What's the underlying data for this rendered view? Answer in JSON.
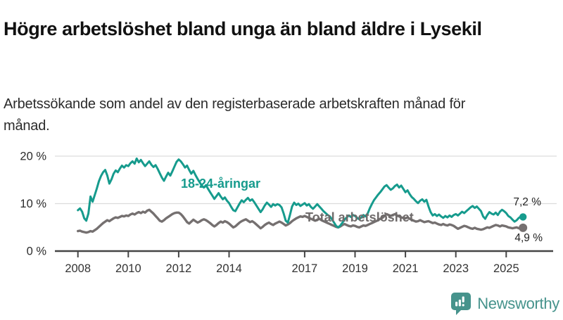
{
  "header": {
    "title": "Högre arbetslöshet bland unga än bland äldre i Lysekil",
    "subtitle": "Arbetssökande som andel av den registerbaserade arbetskraften månad för månad."
  },
  "chart_data": {
    "type": "line",
    "x_unit": "month",
    "x_start": "2008-01",
    "x_end": "2025-09",
    "x_ticks": [
      2008,
      2010,
      2012,
      2014,
      2017,
      2019,
      2021,
      2023,
      2025
    ],
    "y_ticks": [
      "20 %",
      "10 %",
      "0 %"
    ],
    "y_grid_values": [
      20,
      10,
      0
    ],
    "ylim": [
      0,
      21.5
    ],
    "grid": "horizontal",
    "axis_color": "#454545",
    "grid_color": "#dcdcdc",
    "series": [
      {
        "name": "18-24-åringar",
        "color": "#169b8d",
        "end_label": "7,2 %",
        "end_value": 7.2,
        "values": [
          8.6,
          9.0,
          8.3,
          6.9,
          6.4,
          7.9,
          11.5,
          10.4,
          11.8,
          13.2,
          14.7,
          15.8,
          16.6,
          17.1,
          15.9,
          14.2,
          15.1,
          16.3,
          17.0,
          16.6,
          17.4,
          18.0,
          17.6,
          18.1,
          17.9,
          18.5,
          18.9,
          18.4,
          19.5,
          18.7,
          19.2,
          18.5,
          17.9,
          18.4,
          18.9,
          18.2,
          17.7,
          18.1,
          17.3,
          16.4,
          15.5,
          14.8,
          15.7,
          16.5,
          15.9,
          16.8,
          17.8,
          18.8,
          19.3,
          18.9,
          18.3,
          17.6,
          18.0,
          17.1,
          16.3,
          16.9,
          16.0,
          15.2,
          14.5,
          13.8,
          13.4,
          13.9,
          13.1,
          12.4,
          11.7,
          11.0,
          11.6,
          12.2,
          11.5,
          10.9,
          11.3,
          10.6,
          10.1,
          9.3,
          8.6,
          8.4,
          9.2,
          10.0,
          10.7,
          10.3,
          10.8,
          11.2,
          10.6,
          10.9,
          10.3,
          9.6,
          8.9,
          8.2,
          8.8,
          9.6,
          10.2,
          9.8,
          9.3,
          9.9,
          9.6,
          9.9,
          9.7,
          9.2,
          7.9,
          6.4,
          6.0,
          7.6,
          9.4,
          10.2,
          9.7,
          10.0,
          9.5,
          9.8,
          10.1,
          9.6,
          9.9,
          9.3,
          8.9,
          9.4,
          9.9,
          9.4,
          8.9,
          8.4,
          8.0,
          7.6,
          7.3,
          6.7,
          6.0,
          5.3,
          5.0,
          5.4,
          6.0,
          6.6,
          7.1,
          7.5,
          7.2,
          7.6,
          7.4,
          7.0,
          6.7,
          7.1,
          7.6,
          7.3,
          7.9,
          9.0,
          9.9,
          10.7,
          11.3,
          11.9,
          12.4,
          13.0,
          13.6,
          13.9,
          13.4,
          12.9,
          13.2,
          13.7,
          14.0,
          13.4,
          13.8,
          13.1,
          12.4,
          12.8,
          12.0,
          11.4,
          11.0,
          10.5,
          10.1,
          10.6,
          10.9,
          10.4,
          10.8,
          9.4,
          8.2,
          7.5,
          7.8,
          7.4,
          7.7,
          7.3,
          7.0,
          7.4,
          7.1,
          7.5,
          7.2,
          7.6,
          7.8,
          7.5,
          7.9,
          8.3,
          8.0,
          8.4,
          8.8,
          9.2,
          9.5,
          9.1,
          9.4,
          8.9,
          8.4,
          7.3,
          6.8,
          7.6,
          8.2,
          7.9,
          7.7,
          8.1,
          7.6,
          8.3,
          8.7,
          8.4,
          8.0,
          7.4,
          7.1,
          6.6,
          6.2,
          6.5,
          7.0,
          7.3,
          7.2
        ]
      },
      {
        "name": "Total arbetslöshet",
        "color": "#757070",
        "end_label": "4,9 %",
        "end_value": 4.9,
        "values": [
          4.2,
          4.3,
          4.1,
          4.0,
          3.9,
          4.0,
          4.2,
          4.1,
          4.4,
          4.7,
          5.1,
          5.5,
          5.9,
          6.2,
          6.5,
          6.3,
          6.6,
          6.9,
          7.1,
          7.0,
          7.2,
          7.4,
          7.3,
          7.5,
          7.4,
          7.7,
          7.9,
          7.7,
          8.0,
          8.2,
          8.0,
          8.3,
          8.1,
          8.5,
          8.7,
          8.3,
          7.9,
          7.4,
          6.9,
          6.4,
          6.2,
          6.5,
          6.9,
          7.2,
          7.5,
          7.8,
          8.0,
          8.1,
          8.1,
          7.8,
          7.3,
          6.7,
          6.1,
          5.8,
          6.2,
          6.6,
          6.3,
          6.0,
          6.2,
          6.5,
          6.7,
          6.5,
          6.2,
          5.9,
          5.5,
          5.2,
          5.5,
          5.9,
          6.2,
          6.0,
          6.3,
          6.1,
          5.8,
          5.4,
          5.0,
          5.2,
          5.6,
          6.0,
          6.3,
          6.5,
          6.7,
          6.4,
          6.1,
          6.3,
          6.0,
          5.6,
          5.2,
          4.8,
          5.1,
          5.5,
          5.8,
          6.0,
          5.7,
          5.5,
          5.8,
          6.0,
          6.2,
          6.0,
          5.7,
          5.4,
          5.6,
          5.9,
          6.3,
          6.6,
          6.9,
          7.1,
          7.3,
          7.2,
          7.4,
          7.2,
          7.0,
          6.8,
          6.6,
          6.4,
          6.6,
          6.8,
          6.5,
          6.3,
          6.1,
          5.9,
          5.7,
          5.5,
          5.3,
          5.1,
          5.0,
          5.2,
          5.5,
          5.7,
          5.5,
          5.3,
          5.2,
          5.4,
          5.3,
          5.1,
          5.0,
          5.2,
          5.4,
          5.3,
          5.5,
          5.7,
          5.9,
          6.1,
          6.3,
          6.5,
          6.8,
          7.0,
          7.4,
          7.8,
          7.6,
          7.4,
          7.6,
          7.8,
          7.5,
          7.3,
          7.1,
          7.0,
          6.9,
          7.1,
          6.8,
          6.6,
          6.4,
          6.2,
          6.3,
          6.5,
          6.3,
          6.1,
          6.2,
          6.3,
          6.1,
          5.9,
          6.0,
          5.8,
          5.6,
          5.5,
          5.7,
          5.5,
          5.4,
          5.6,
          5.5,
          5.3,
          5.0,
          4.7,
          4.9,
          5.1,
          5.3,
          5.2,
          5.0,
          4.8,
          4.7,
          4.9,
          4.7,
          4.6,
          4.5,
          4.6,
          4.8,
          5.0,
          4.9,
          5.1,
          5.3,
          5.5,
          5.4,
          5.2,
          5.4,
          5.3,
          5.2,
          5.0,
          4.9,
          4.8,
          4.9,
          5.0,
          4.8,
          4.9,
          4.9
        ]
      }
    ]
  },
  "footer": {
    "brand": "Newsworthy",
    "brand_color": "#46938c"
  }
}
